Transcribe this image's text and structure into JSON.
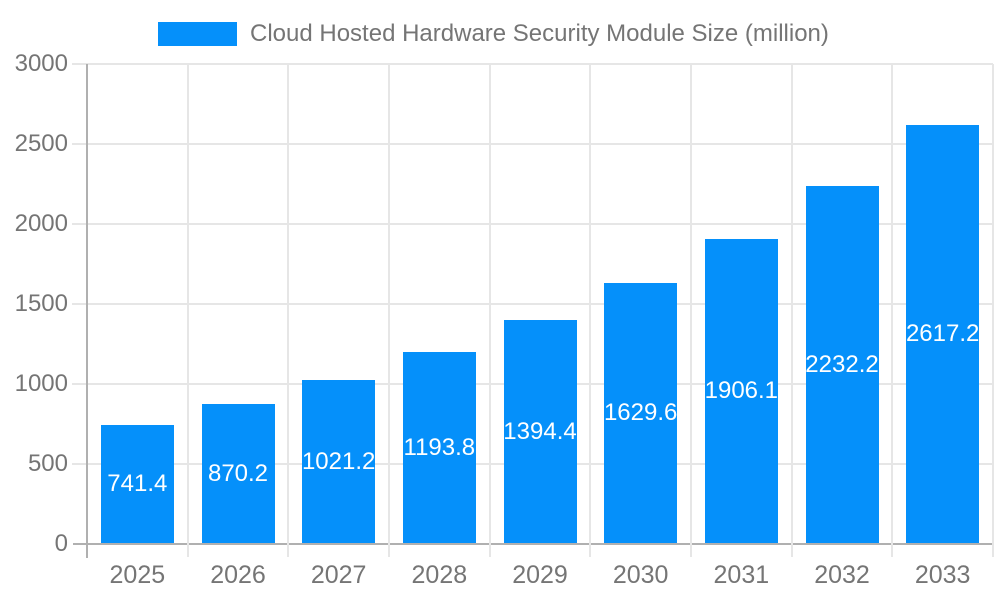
{
  "chart_data": {
    "type": "bar",
    "title": "Cloud Hosted Hardware Security Module Size (million)",
    "legend_position": "top",
    "categories": [
      "2025",
      "2026",
      "2027",
      "2028",
      "2029",
      "2030",
      "2031",
      "2032",
      "2033"
    ],
    "series": [
      {
        "name": "Cloud Hosted Hardware Security Module Size (million)",
        "values": [
          741.4,
          870.2,
          1021.2,
          1193.8,
          1394.4,
          1629.6,
          1906.1,
          2232.2,
          2617.2
        ]
      }
    ],
    "value_labels": [
      "741.4",
      "870.2",
      "1021.2",
      "1193.8",
      "1394.4",
      "1629.6",
      "1906.1",
      "2232.2",
      "2617.2"
    ],
    "xlabel": "",
    "ylabel": "",
    "ylim": [
      0,
      3000
    ],
    "yticks": [
      0,
      500,
      1000,
      1500,
      2000,
      2500,
      3000
    ],
    "grid": true,
    "colors": {
      "bar": "#0590fa",
      "value_label": "#ffffff",
      "axis_label": "#757575",
      "legend_text": "#757575",
      "gridline": "#e6e6e6",
      "axis_line": "#b0b0b0",
      "background": "#ffffff"
    }
  }
}
